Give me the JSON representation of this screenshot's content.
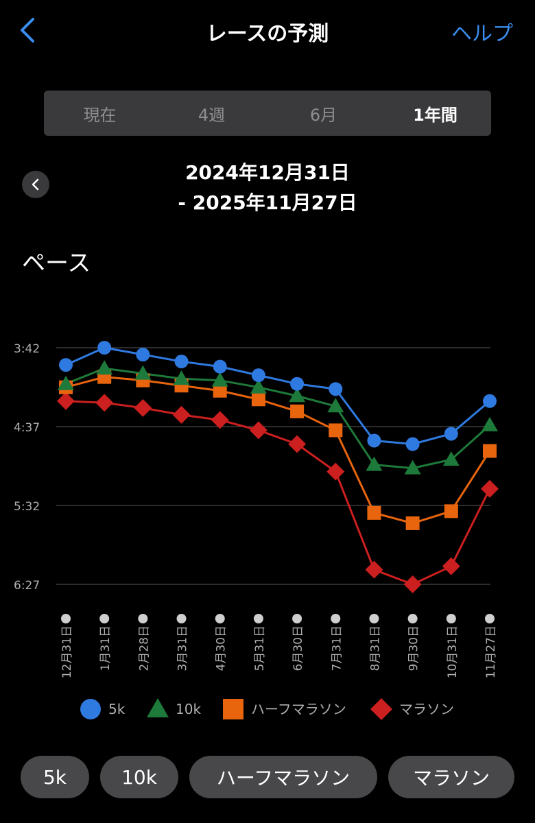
{
  "nav": {
    "back_icon": "chevron-left-icon",
    "title": "レースの予測",
    "help": "ヘルプ"
  },
  "tabs": [
    {
      "label": "現在",
      "active": false
    },
    {
      "label": "4週",
      "active": false
    },
    {
      "label": "6月",
      "active": false
    },
    {
      "label": "1年間",
      "active": true
    }
  ],
  "date_range": {
    "start": "2024年12月31日",
    "end": "- 2025年11月27日",
    "prev_icon": "chevron-left-icon"
  },
  "section_title": "ペース",
  "chips": {
    "c5k": "5k",
    "c10k": "10k",
    "half": "ハーフマラソン",
    "marathon": "マラソン"
  },
  "colors": {
    "accent": "#3a8ef0",
    "5k": "#2f7ae0",
    "10k": "#1e7a3a",
    "half": "#e8650e",
    "marathon": "#cc1f1f"
  },
  "chart_data": {
    "type": "line",
    "ylabel": "",
    "y_ticks": [
      "3:42",
      "4:37",
      "5:32",
      "6:27"
    ],
    "y_ticks_minutes": [
      3.7,
      4.6167,
      5.5333,
      6.45
    ],
    "y_inverted": true,
    "grid": true,
    "legend_position": "bottom",
    "categories": [
      "12月31日",
      "1月31日",
      "2月28日",
      "3月31日",
      "4月30日",
      "5月31日",
      "6月30日",
      "7月31日",
      "8月31日",
      "9月30日",
      "10月31日",
      "11月27日"
    ],
    "series": [
      {
        "name": "5k",
        "marker": "circle",
        "color": "#2f7ae0",
        "values": [
          3.9,
          3.7,
          3.78,
          3.86,
          3.92,
          4.02,
          4.12,
          4.18,
          4.78,
          4.82,
          4.7,
          4.32
        ]
      },
      {
        "name": "10k",
        "marker": "triangle",
        "color": "#1e7a3a",
        "values": [
          4.12,
          3.94,
          4.0,
          4.06,
          4.08,
          4.16,
          4.26,
          4.38,
          5.06,
          5.1,
          5.0,
          4.6
        ]
      },
      {
        "name": "ハーフマラソン",
        "marker": "square",
        "color": "#e8650e",
        "values": [
          4.16,
          4.04,
          4.08,
          4.14,
          4.2,
          4.3,
          4.44,
          4.66,
          5.62,
          5.74,
          5.6,
          4.9
        ]
      },
      {
        "name": "マラソン",
        "marker": "diamond",
        "color": "#cc1f1f",
        "values": [
          4.32,
          4.34,
          4.4,
          4.48,
          4.54,
          4.66,
          4.82,
          5.14,
          6.28,
          6.45,
          6.24,
          5.34
        ]
      }
    ]
  }
}
